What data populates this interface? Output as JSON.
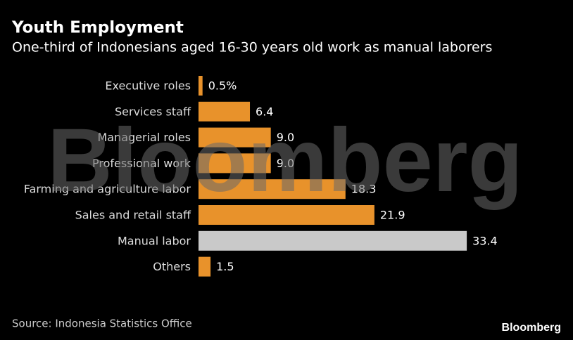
{
  "chart_data": {
    "type": "bar",
    "orientation": "horizontal",
    "title": "Youth Employment",
    "subtitle": "One-third of Indonesians aged 16-30 years old work as manual laborers",
    "categories": [
      "Executive roles",
      "Services staff",
      "Managerial roles",
      "Professional work",
      "Farming and agriculture labor",
      "Sales and retail staff",
      "Manual labor",
      "Others"
    ],
    "values": [
      0.5,
      6.4,
      9.0,
      9.0,
      18.3,
      21.9,
      33.4,
      1.5
    ],
    "value_labels": [
      "0.5%",
      "6.4",
      "9.0",
      "9.0",
      "18.3",
      "21.9",
      "33.4",
      "1.5"
    ],
    "colors": [
      "#e8922b",
      "#e8922b",
      "#e8922b",
      "#e8922b",
      "#e8922b",
      "#e8922b",
      "#c9c9c9",
      "#e8922b"
    ],
    "source": "Source: Indonesia Statistics Office",
    "watermark": "Bloomberg",
    "logo": "Bloomberg"
  }
}
